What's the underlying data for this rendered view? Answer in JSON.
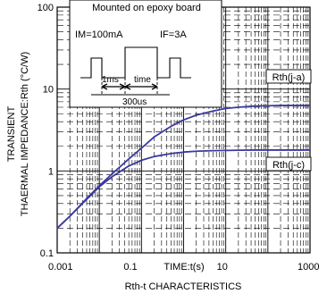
{
  "chart_data": {
    "type": "line",
    "title": "Rth-t CHARACTERISTICS",
    "xlabel": "TIME:t(s)",
    "ylabel_line1": "TRANSIENT",
    "ylabel_line2": "THAERMAL IMPEDANCE:Rth (°C/W)",
    "x_scale": "log",
    "y_scale": "log",
    "xlim": [
      0.001,
      1000
    ],
    "ylim": [
      0.1,
      100
    ],
    "x_ticks": [
      {
        "value": 0.001,
        "label": "0.001"
      },
      {
        "value": 0.1,
        "label": "0.1"
      },
      {
        "value": 10,
        "label": "10"
      },
      {
        "value": 1000,
        "label": "1000"
      }
    ],
    "y_ticks": [
      {
        "value": 100,
        "label": "100"
      },
      {
        "value": 10,
        "label": "10"
      },
      {
        "value": 1,
        "label": "1"
      },
      {
        "value": 0.1,
        "label": "0.1"
      }
    ],
    "grid": true,
    "line_color": "#3a3aa0",
    "series": [
      {
        "name": "Rth(j-a)",
        "x": [
          0.001,
          0.002,
          0.005,
          0.01,
          0.02,
          0.05,
          0.1,
          0.2,
          0.5,
          1,
          2,
          5,
          10,
          20,
          50,
          100,
          200,
          500,
          1000
        ],
        "y": [
          0.2,
          0.28,
          0.46,
          0.66,
          0.92,
          1.4,
          1.9,
          2.6,
          3.5,
          4.2,
          4.8,
          5.4,
          5.8,
          6.0,
          6.2,
          6.25,
          6.3,
          6.3,
          6.3
        ]
      },
      {
        "name": "Rth(j-c)",
        "x": [
          0.001,
          0.002,
          0.005,
          0.01,
          0.02,
          0.05,
          0.1,
          0.2,
          0.5,
          1,
          2,
          5,
          10,
          20,
          50,
          100,
          1000
        ],
        "y": [
          0.2,
          0.28,
          0.45,
          0.64,
          0.85,
          1.15,
          1.35,
          1.5,
          1.63,
          1.7,
          1.74,
          1.77,
          1.78,
          1.79,
          1.8,
          1.8,
          1.8
        ]
      }
    ],
    "inset": {
      "title": "Mounted on epoxy board",
      "im_label": "IM=100mA",
      "if_label": "IF=3A",
      "t1_label": "1ms",
      "t2_label": "time",
      "period_label": "300us"
    }
  }
}
